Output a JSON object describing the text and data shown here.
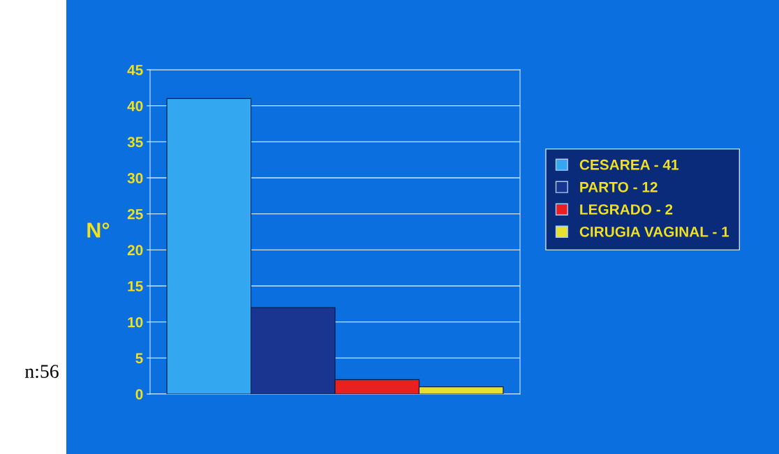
{
  "chart_data": {
    "type": "bar",
    "ylabel": "N°",
    "categories": [
      null,
      null,
      null,
      null
    ],
    "series": [
      {
        "name": "CESAREA - 41",
        "color": "#33a8f0",
        "values": [
          41,
          null,
          null,
          null
        ]
      },
      {
        "name": "PARTO - 12",
        "color": "#1a3590",
        "values": [
          null,
          12,
          null,
          null
        ]
      },
      {
        "name": "LEGRADO - 2",
        "color": "#e82020",
        "values": [
          null,
          null,
          2,
          null
        ]
      },
      {
        "name": "CIRUGIA VAGINAL - 1",
        "color": "#e8e030",
        "values": [
          null,
          null,
          null,
          1
        ]
      }
    ],
    "ylim": [
      0,
      45
    ],
    "yticks": [
      0,
      5,
      10,
      15,
      20,
      25,
      30,
      35,
      40,
      45
    ],
    "grid": "y",
    "legend": "right",
    "annotations": [
      "n:56"
    ]
  }
}
